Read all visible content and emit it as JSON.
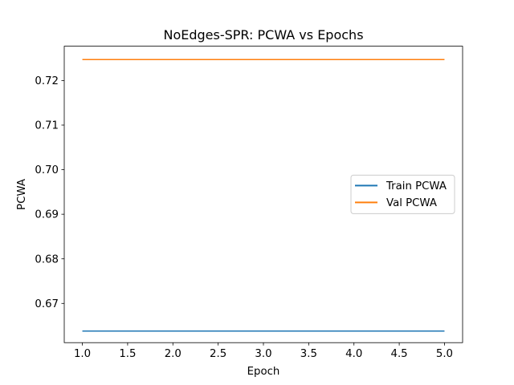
{
  "chart_data": {
    "type": "line",
    "title": "NoEdges-SPR: PCWA vs Epochs",
    "xlabel": "Epoch",
    "ylabel": "PCWA",
    "x": [
      1,
      2,
      3,
      4,
      5
    ],
    "xlim": [
      0.8,
      5.2
    ],
    "ylim": [
      0.6612,
      0.7277
    ],
    "xticks": [
      "1.0",
      "1.5",
      "2.0",
      "2.5",
      "3.0",
      "3.5",
      "4.0",
      "4.5",
      "5.0"
    ],
    "yticks": [
      "0.67",
      "0.68",
      "0.69",
      "0.70",
      "0.71",
      "0.72"
    ],
    "grid": false,
    "legend_position": "center-right",
    "series": [
      {
        "name": "Train PCWA",
        "color": "#1f77b4",
        "values": [
          0.6638,
          0.6638,
          0.6638,
          0.6638,
          0.6638
        ]
      },
      {
        "name": "Val PCWA",
        "color": "#ff7f0e",
        "values": [
          0.7247,
          0.7247,
          0.7247,
          0.7247,
          0.7247
        ]
      }
    ]
  }
}
